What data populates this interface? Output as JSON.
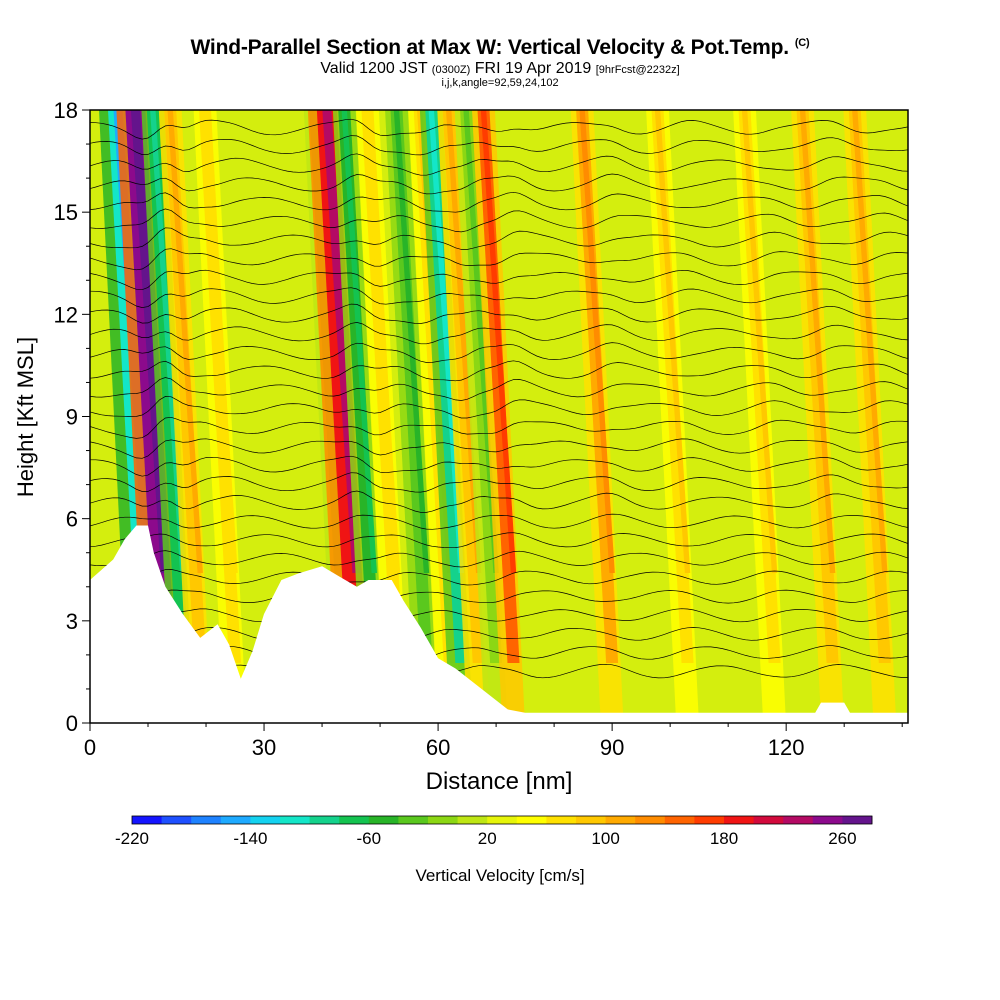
{
  "header": {
    "title": "Wind-Parallel Section at Max W: Vertical Velocity & Pot.Temp.",
    "copyright": "(C)",
    "valid_prefix": "Valid 1200 JST",
    "valid_utc": "(0300Z)",
    "valid_date": "FRI 19 Apr 2019",
    "forecast": "[9hrFcst@2232z]",
    "grid_info": "i,j,k,angle=92,59,24,102"
  },
  "chart_data": {
    "type": "heatmap",
    "title": "Wind-Parallel Section at Max W: Vertical Velocity & Pot.Temp.",
    "xlabel": "Distance [nm]",
    "ylabel": "Height [Kft MSL]",
    "xlim": [
      0,
      141
    ],
    "ylim": [
      0,
      18
    ],
    "x_ticks": [
      0,
      30,
      60,
      90,
      120
    ],
    "y_ticks": [
      0,
      3,
      6,
      9,
      12,
      15,
      18
    ],
    "colorbar": {
      "label": "Vertical Velocity [cm/s]",
      "tick_labels": [
        "-220",
        "-140",
        "-60",
        "20",
        "100",
        "180",
        "260"
      ],
      "colors": [
        "#1414ff",
        "#1e50ff",
        "#1e82ff",
        "#1eaaff",
        "#14d2f0",
        "#14e6c8",
        "#14d28c",
        "#14c350",
        "#28b428",
        "#5ac81e",
        "#8cd714",
        "#bee614",
        "#e6f50a",
        "#ffff00",
        "#ffe100",
        "#ffc800",
        "#ffaa00",
        "#ff8c00",
        "#ff6400",
        "#ff3c00",
        "#f01414",
        "#d20a3c",
        "#b40a64",
        "#8c0a8c",
        "#64148c"
      ]
    },
    "w_columns": [
      {
        "x": 10,
        "w": -180
      },
      {
        "x": 13,
        "w": 280
      },
      {
        "x": 16,
        "w": -120
      },
      {
        "x": 19,
        "w": 80
      },
      {
        "x": 25,
        "w": 40
      },
      {
        "x": 44,
        "w": -40
      },
      {
        "x": 46,
        "w": 200
      },
      {
        "x": 49,
        "w": -100
      },
      {
        "x": 53,
        "w": 40
      },
      {
        "x": 58,
        "w": -80
      },
      {
        "x": 62,
        "w": 60
      },
      {
        "x": 64,
        "w": -140
      },
      {
        "x": 67,
        "w": 80
      },
      {
        "x": 70,
        "w": -60
      },
      {
        "x": 73,
        "w": 140
      },
      {
        "x": 90,
        "w": 100
      },
      {
        "x": 103,
        "w": 50
      },
      {
        "x": 118,
        "w": 60
      },
      {
        "x": 128,
        "w": 80
      },
      {
        "x": 137,
        "w": 70
      }
    ],
    "terrain_kft": [
      [
        0,
        4.2
      ],
      [
        2,
        4.5
      ],
      [
        4,
        4.8
      ],
      [
        6,
        5.4
      ],
      [
        8,
        5.8
      ],
      [
        10,
        5.8
      ],
      [
        11,
        5.0
      ],
      [
        13,
        4.0
      ],
      [
        16,
        3.2
      ],
      [
        19,
        2.5
      ],
      [
        22,
        2.9
      ],
      [
        24,
        2.3
      ],
      [
        26,
        1.3
      ],
      [
        28,
        2.1
      ],
      [
        30,
        3.2
      ],
      [
        33,
        4.2
      ],
      [
        36,
        4.4
      ],
      [
        40,
        4.6
      ],
      [
        43,
        4.3
      ],
      [
        46,
        4.0
      ],
      [
        48,
        4.2
      ],
      [
        52,
        4.2
      ],
      [
        54,
        3.6
      ],
      [
        57,
        2.8
      ],
      [
        60,
        1.9
      ],
      [
        63,
        1.6
      ],
      [
        66,
        1.2
      ],
      [
        69,
        0.8
      ],
      [
        72,
        0.4
      ],
      [
        75,
        0.3
      ],
      [
        80,
        0.3
      ],
      [
        90,
        0.3
      ],
      [
        100,
        0.3
      ],
      [
        110,
        0.3
      ],
      [
        125,
        0.3
      ],
      [
        126,
        0.6
      ],
      [
        130,
        0.6
      ],
      [
        131,
        0.3
      ],
      [
        141,
        0.3
      ]
    ],
    "theta_contours": {
      "count": 30,
      "base_kft": 1.5,
      "spacing_kft": 0.55
    }
  }
}
